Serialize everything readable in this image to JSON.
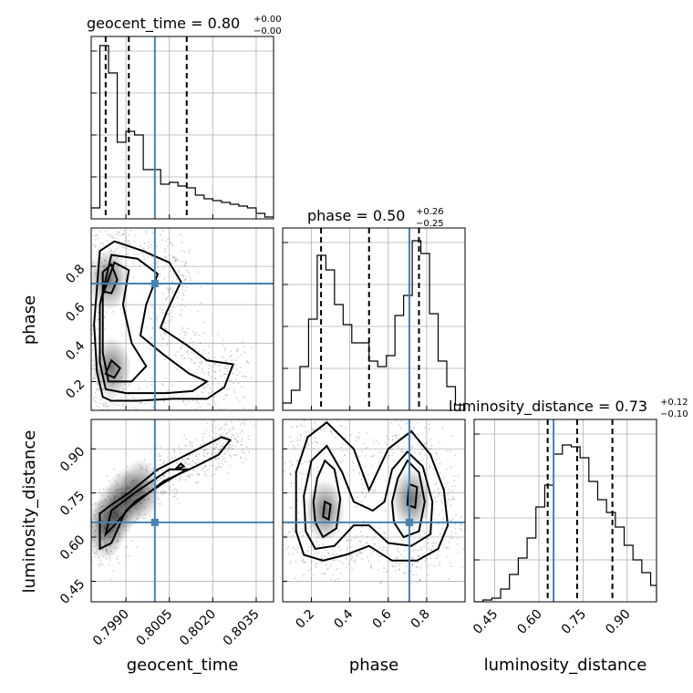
{
  "chart_data": {
    "type": "corner",
    "parameters": [
      "geocent_time",
      "phase",
      "luminosity_distance"
    ],
    "truths": {
      "geocent_time": 0.8,
      "phase": 0.71,
      "luminosity_distance": 0.65
    },
    "titles": [
      {
        "param": "geocent_time",
        "main": "geocent_time = 0.80",
        "sup": "+0.00",
        "sub": "−0.00"
      },
      {
        "param": "phase",
        "main": "phase = 0.50",
        "sup": "+0.26",
        "sub": "−0.25"
      },
      {
        "param": "luminosity_distance",
        "main": "luminosity_distance = 0.73",
        "sup": "+0.12",
        "sub": "−0.10"
      }
    ],
    "axes": {
      "geocent_time": {
        "range": [
          0.7978,
          0.8041
        ],
        "ticks": [
          0.799,
          0.8005,
          0.802,
          0.8035
        ],
        "tick_labels": [
          "0.7990",
          "0.8005",
          "0.8020",
          "0.8035"
        ],
        "label": "geocent_time"
      },
      "phase": {
        "range": [
          0.05,
          1.0
        ],
        "ticks": [
          0.2,
          0.4,
          0.6,
          0.8
        ],
        "tick_labels": [
          "0.2",
          "0.4",
          "0.6",
          "0.8"
        ],
        "label": "phase"
      },
      "luminosity_distance": {
        "range": [
          0.38,
          1.0
        ],
        "ticks": [
          0.45,
          0.6,
          0.75,
          0.9
        ],
        "tick_labels": [
          "0.45",
          "0.60",
          "0.75",
          "0.90"
        ],
        "label": "luminosity_distance"
      }
    },
    "histograms": {
      "geocent_time": {
        "edges": [
          0.7978,
          0.7981,
          0.7984,
          0.7987,
          0.799,
          0.7993,
          0.7996,
          0.7999,
          0.8002,
          0.8005,
          0.8008,
          0.8011,
          0.8014,
          0.8017,
          0.802,
          0.8023,
          0.8026,
          0.8029,
          0.8032,
          0.8035,
          0.8038,
          0.8041
        ],
        "counts": [
          0.06,
          0.95,
          0.8,
          0.42,
          0.48,
          0.46,
          0.27,
          0.27,
          0.19,
          0.2,
          0.18,
          0.17,
          0.13,
          0.11,
          0.1,
          0.09,
          0.08,
          0.07,
          0.06,
          0.03,
          0.01
        ],
        "quantiles": [
          0.7983,
          0.7991,
          0.8011
        ]
      },
      "phase": {
        "edges": [
          0.05,
          0.095,
          0.14,
          0.185,
          0.23,
          0.275,
          0.32,
          0.365,
          0.41,
          0.455,
          0.5,
          0.545,
          0.59,
          0.635,
          0.68,
          0.725,
          0.77,
          0.815,
          0.86,
          0.905,
          0.95,
          1.0
        ],
        "counts": [
          0.04,
          0.11,
          0.24,
          0.5,
          0.85,
          0.77,
          0.58,
          0.47,
          0.37,
          0.37,
          0.27,
          0.24,
          0.3,
          0.52,
          0.63,
          0.93,
          0.86,
          0.53,
          0.27,
          0.13,
          0.03
        ],
        "quantiles": [
          0.25,
          0.5,
          0.76
        ]
      },
      "luminosity_distance": {
        "edges": [
          0.38,
          0.41,
          0.44,
          0.47,
          0.5,
          0.53,
          0.56,
          0.59,
          0.62,
          0.65,
          0.68,
          0.71,
          0.74,
          0.77,
          0.8,
          0.83,
          0.86,
          0.89,
          0.92,
          0.95,
          0.98,
          1.0
        ],
        "counts": [
          0.0,
          0.01,
          0.02,
          0.07,
          0.15,
          0.24,
          0.35,
          0.52,
          0.64,
          0.81,
          0.86,
          0.85,
          0.79,
          0.66,
          0.56,
          0.49,
          0.41,
          0.31,
          0.23,
          0.16,
          0.09
        ],
        "quantiles": [
          0.63,
          0.73,
          0.85
        ]
      }
    },
    "joint_2d": [
      {
        "x": "geocent_time",
        "y": "phase",
        "contours": [
          [
            [
              0.7982,
              0.12
            ],
            [
              0.7985,
              0.1
            ],
            [
              0.7994,
              0.1
            ],
            [
              0.8006,
              0.11
            ],
            [
              0.8018,
              0.11
            ],
            [
              0.8024,
              0.17
            ],
            [
              0.8027,
              0.29
            ],
            [
              0.8018,
              0.31
            ],
            [
              0.8011,
              0.39
            ],
            [
              0.8002,
              0.48
            ],
            [
              0.8004,
              0.56
            ],
            [
              0.8009,
              0.72
            ],
            [
              0.8005,
              0.82
            ],
            [
              0.7996,
              0.88
            ],
            [
              0.7986,
              0.93
            ],
            [
              0.7981,
              0.88
            ],
            [
              0.7979,
              0.5
            ],
            [
              0.798,
              0.25
            ]
          ],
          [
            [
              0.7983,
              0.16
            ],
            [
              0.799,
              0.14
            ],
            [
              0.8004,
              0.14
            ],
            [
              0.8013,
              0.15
            ],
            [
              0.8018,
              0.2
            ],
            [
              0.8012,
              0.24
            ],
            [
              0.8003,
              0.34
            ],
            [
              0.7995,
              0.44
            ],
            [
              0.7997,
              0.6
            ],
            [
              0.8001,
              0.76
            ],
            [
              0.7994,
              0.84
            ],
            [
              0.7985,
              0.86
            ],
            [
              0.7981,
              0.6
            ],
            [
              0.7981,
              0.3
            ]
          ],
          [
            [
              0.7984,
              0.2
            ],
            [
              0.7992,
              0.2
            ],
            [
              0.7997,
              0.28
            ],
            [
              0.7992,
              0.4
            ],
            [
              0.7989,
              0.6
            ],
            [
              0.7991,
              0.78
            ],
            [
              0.7986,
              0.82
            ],
            [
              0.7982,
              0.65
            ],
            [
              0.7982,
              0.35
            ]
          ],
          [
            [
              0.7982,
              0.67
            ],
            [
              0.7985,
              0.66
            ],
            [
              0.7987,
              0.73
            ],
            [
              0.7985,
              0.81
            ],
            [
              0.7982,
              0.77
            ]
          ],
          [
            [
              0.7983,
              0.24
            ],
            [
              0.7986,
              0.22
            ],
            [
              0.7988,
              0.27
            ],
            [
              0.7985,
              0.31
            ]
          ]
        ],
        "density_peaks": [
          [
            0.7984,
            0.73
          ],
          [
            0.7985,
            0.27
          ]
        ]
      },
      {
        "x": "geocent_time",
        "y": "luminosity_distance",
        "contours": [
          [
            [
              0.7981,
              0.56
            ],
            [
              0.7985,
              0.58
            ],
            [
              0.799,
              0.69
            ],
            [
              0.8003,
              0.79
            ],
            [
              0.8014,
              0.84
            ],
            [
              0.8022,
              0.88
            ],
            [
              0.8026,
              0.93
            ],
            [
              0.8023,
              0.94
            ],
            [
              0.8013,
              0.89
            ],
            [
              0.8001,
              0.83
            ],
            [
              0.7991,
              0.75
            ],
            [
              0.7985,
              0.71
            ],
            [
              0.7981,
              0.68
            ]
          ],
          [
            [
              0.7983,
              0.61
            ],
            [
              0.7986,
              0.64
            ],
            [
              0.7993,
              0.72
            ],
            [
              0.8004,
              0.79
            ],
            [
              0.8011,
              0.83
            ],
            [
              0.8005,
              0.83
            ],
            [
              0.7993,
              0.75
            ],
            [
              0.7985,
              0.69
            ]
          ],
          [
            [
              0.8007,
              0.83
            ],
            [
              0.801,
              0.84
            ],
            [
              0.8009,
              0.85
            ]
          ]
        ],
        "density_peaks": [
          [
            0.7983,
            0.63
          ],
          [
            0.7986,
            0.68
          ],
          [
            0.799,
            0.73
          ],
          [
            0.7995,
            0.76
          ]
        ]
      },
      {
        "x": "phase",
        "y": "luminosity_distance",
        "contours": [
          [
            [
              0.12,
              0.62
            ],
            [
              0.16,
              0.54
            ],
            [
              0.26,
              0.52
            ],
            [
              0.38,
              0.54
            ],
            [
              0.5,
              0.57
            ],
            [
              0.62,
              0.52
            ],
            [
              0.75,
              0.52
            ],
            [
              0.86,
              0.56
            ],
            [
              0.91,
              0.64
            ],
            [
              0.89,
              0.76
            ],
            [
              0.82,
              0.88
            ],
            [
              0.72,
              0.96
            ],
            [
              0.6,
              0.9
            ],
            [
              0.5,
              0.76
            ],
            [
              0.42,
              0.9
            ],
            [
              0.28,
              0.99
            ],
            [
              0.18,
              0.94
            ],
            [
              0.12,
              0.82
            ]
          ],
          [
            [
              0.17,
              0.62
            ],
            [
              0.22,
              0.56
            ],
            [
              0.32,
              0.57
            ],
            [
              0.42,
              0.64
            ],
            [
              0.5,
              0.64
            ],
            [
              0.6,
              0.58
            ],
            [
              0.72,
              0.57
            ],
            [
              0.82,
              0.61
            ],
            [
              0.83,
              0.72
            ],
            [
              0.78,
              0.84
            ],
            [
              0.7,
              0.89
            ],
            [
              0.62,
              0.83
            ],
            [
              0.58,
              0.72
            ],
            [
              0.52,
              0.69
            ],
            [
              0.42,
              0.72
            ],
            [
              0.36,
              0.82
            ],
            [
              0.28,
              0.91
            ],
            [
              0.2,
              0.86
            ],
            [
              0.16,
              0.74
            ]
          ],
          [
            [
              0.22,
              0.65
            ],
            [
              0.26,
              0.6
            ],
            [
              0.33,
              0.63
            ],
            [
              0.35,
              0.73
            ],
            [
              0.32,
              0.83
            ],
            [
              0.27,
              0.86
            ],
            [
              0.23,
              0.8
            ],
            [
              0.21,
              0.72
            ]
          ],
          [
            [
              0.63,
              0.65
            ],
            [
              0.68,
              0.6
            ],
            [
              0.76,
              0.62
            ],
            [
              0.79,
              0.72
            ],
            [
              0.76,
              0.82
            ],
            [
              0.7,
              0.86
            ],
            [
              0.65,
              0.8
            ],
            [
              0.62,
              0.72
            ]
          ],
          [
            [
              0.26,
              0.67
            ],
            [
              0.29,
              0.66
            ],
            [
              0.3,
              0.71
            ],
            [
              0.27,
              0.72
            ]
          ],
          [
            [
              0.7,
              0.71
            ],
            [
              0.74,
              0.7
            ],
            [
              0.75,
              0.77
            ],
            [
              0.71,
              0.78
            ]
          ]
        ],
        "density_peaks": [
          [
            0.27,
            0.69
          ],
          [
            0.72,
            0.73
          ]
        ]
      }
    ],
    "grid": true
  }
}
